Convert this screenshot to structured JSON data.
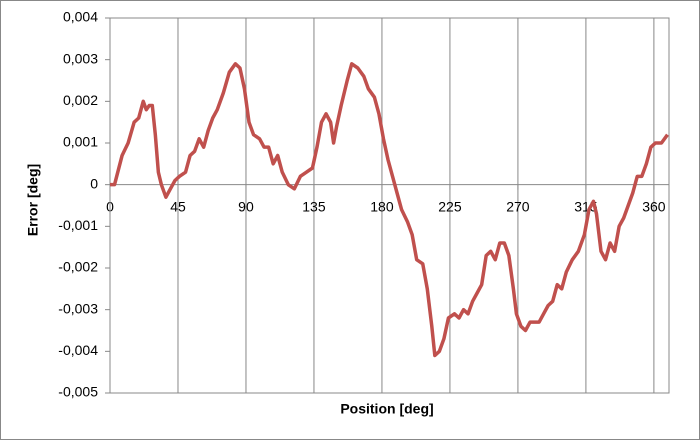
{
  "chart_data": {
    "type": "line",
    "x_label": "Position [deg]",
    "y_label": "Error [deg]",
    "x": [
      0,
      3,
      8,
      12,
      16,
      19,
      22,
      24,
      26,
      28,
      30,
      32,
      34,
      37,
      40,
      43,
      46,
      50,
      53,
      56,
      59,
      62,
      65,
      68,
      71,
      75,
      79,
      83,
      86,
      89,
      92,
      95,
      99,
      102,
      105,
      108,
      111,
      114,
      118,
      122,
      126,
      130,
      134,
      137,
      140,
      143,
      146,
      148,
      150,
      153,
      157,
      160,
      164,
      168,
      171,
      175,
      178,
      181,
      184,
      187,
      190,
      193,
      197,
      200,
      203,
      207,
      210,
      213,
      215,
      218,
      221,
      224,
      228,
      231,
      234,
      237,
      240,
      243,
      246,
      249,
      252,
      255,
      258,
      261,
      264,
      267,
      269,
      272,
      275,
      278,
      281,
      284,
      287,
      290,
      293,
      296,
      299,
      302,
      306,
      310,
      314,
      317,
      320,
      322,
      325,
      328,
      331,
      334,
      337,
      340,
      343,
      346,
      349,
      352,
      355,
      358,
      361,
      365,
      369
    ],
    "values": [
      0,
      0,
      0.0007,
      0.001,
      0.0015,
      0.0016,
      0.002,
      0.0018,
      0.0019,
      0.0019,
      0.0012,
      0.0003,
      0,
      -0.0003,
      -0.0001,
      0.0001,
      0.0002,
      0.0003,
      0.0007,
      0.0008,
      0.0011,
      0.0009,
      0.0013,
      0.0016,
      0.0018,
      0.0022,
      0.0027,
      0.0029,
      0.0028,
      0.0023,
      0.0015,
      0.0012,
      0.0011,
      0.0009,
      0.0009,
      0.0005,
      0.0007,
      0.0003,
      0,
      -0.0001,
      0.0002,
      0.0003,
      0.0004,
      0.0009,
      0.0015,
      0.0017,
      0.0015,
      0.001,
      0.0014,
      0.0019,
      0.0025,
      0.0029,
      0.0028,
      0.0026,
      0.0023,
      0.0021,
      0.0017,
      0.0011,
      0.0006,
      0.0002,
      -0.0002,
      -0.0006,
      -0.0009,
      -0.0012,
      -0.0018,
      -0.0019,
      -0.0025,
      -0.0034,
      -0.0041,
      -0.004,
      -0.0037,
      -0.0032,
      -0.0031,
      -0.0032,
      -0.003,
      -0.0031,
      -0.0028,
      -0.0026,
      -0.0024,
      -0.0017,
      -0.0016,
      -0.0018,
      -0.0014,
      -0.0014,
      -0.0017,
      -0.0025,
      -0.0031,
      -0.0034,
      -0.0035,
      -0.0033,
      -0.0033,
      -0.0033,
      -0.0031,
      -0.0029,
      -0.0028,
      -0.0024,
      -0.0025,
      -0.0021,
      -0.0018,
      -0.0016,
      -0.0012,
      -0.0006,
      -0.0004,
      -0.0007,
      -0.0016,
      -0.0018,
      -0.0014,
      -0.0016,
      -0.001,
      -0.0008,
      -0.0005,
      -0.0002,
      0.0002,
      0.0002,
      0.0005,
      0.0009,
      0.001,
      0.001,
      0.0012
    ],
    "color": "#c0504d",
    "xlim": [
      0,
      370
    ],
    "xticks": [
      0,
      45,
      90,
      135,
      180,
      225,
      270,
      315,
      360
    ],
    "ylim": [
      -0.005,
      0.004
    ],
    "yticks": [
      {
        "value": -0.005,
        "label": "-0,005"
      },
      {
        "value": -0.004,
        "label": "-0,004"
      },
      {
        "value": -0.003,
        "label": "-0,003"
      },
      {
        "value": -0.002,
        "label": "-0,002"
      },
      {
        "value": -0.001,
        "label": "-0,001"
      },
      0,
      {
        "value": 0.001,
        "label": "0,001"
      },
      {
        "value": 0.002,
        "label": "0,002"
      },
      {
        "value": 0.003,
        "label": "0,003"
      },
      {
        "value": 0.004,
        "label": "0,004"
      }
    ],
    "grid": "x"
  }
}
